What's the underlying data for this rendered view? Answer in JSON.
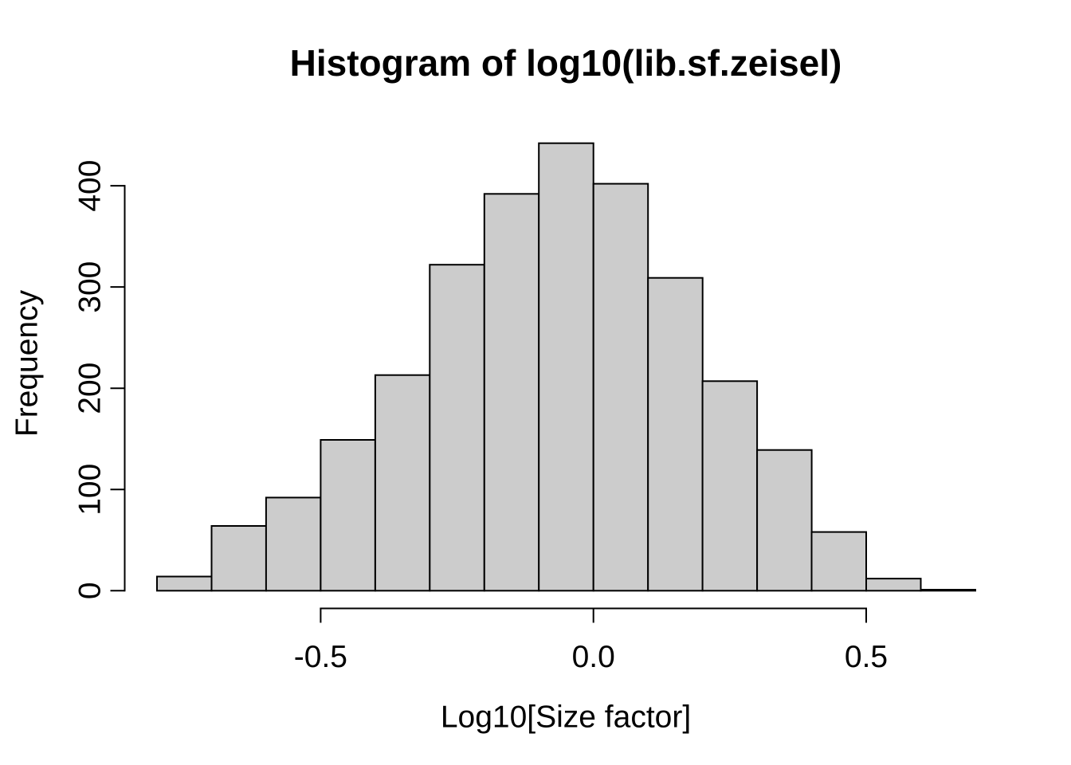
{
  "chart_data": {
    "type": "bar",
    "subtype": "histogram",
    "title": "Histogram of log10(lib.sf.zeisel)",
    "xlabel": "Log10[Size factor]",
    "ylabel": "Frequency",
    "breaks": [
      -0.8,
      -0.7,
      -0.6,
      -0.5,
      -0.4,
      -0.3,
      -0.2,
      -0.1,
      0.0,
      0.1,
      0.2,
      0.3,
      0.4,
      0.5,
      0.6,
      0.7
    ],
    "counts": [
      14,
      64,
      92,
      149,
      213,
      322,
      392,
      442,
      402,
      309,
      207,
      139,
      58,
      12,
      1
    ],
    "x_ticks": [
      {
        "value": -0.5,
        "label": "-0.5"
      },
      {
        "value": 0.0,
        "label": "0.0"
      },
      {
        "value": 0.5,
        "label": "0.5"
      }
    ],
    "y_ticks": [
      {
        "value": 0,
        "label": "0"
      },
      {
        "value": 100,
        "label": "100"
      },
      {
        "value": 200,
        "label": "200"
      },
      {
        "value": 300,
        "label": "300"
      },
      {
        "value": 400,
        "label": "400"
      }
    ],
    "xlim": [
      -0.8,
      0.7
    ],
    "ylim": [
      0,
      442
    ],
    "x_axis_line_span": [
      -0.5,
      0.5
    ],
    "y_axis_line_span": [
      0,
      400
    ],
    "grid": false,
    "legend": null,
    "colors": {
      "bar_fill": "#CCCCCC",
      "bar_border": "#000000",
      "axis": "#000000",
      "text": "#000000",
      "background": "#FFFFFF"
    }
  }
}
